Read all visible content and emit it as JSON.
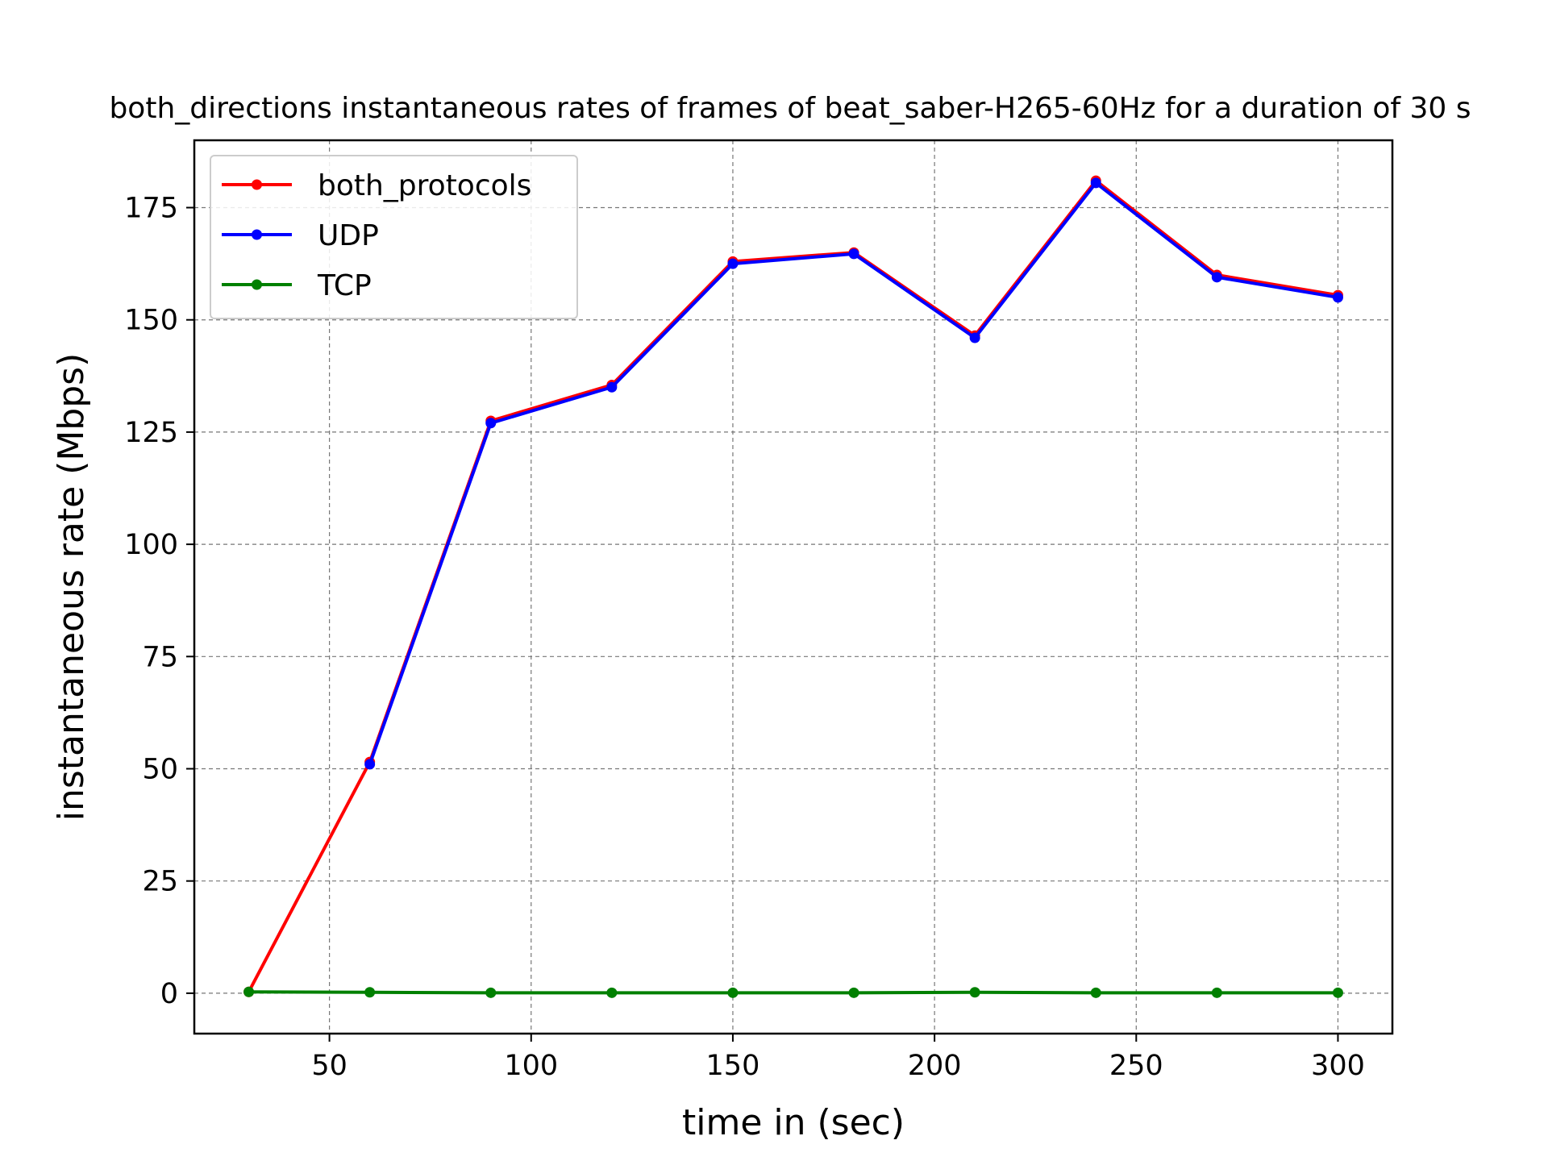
{
  "chart_data": {
    "type": "line",
    "title": "both_directions instantaneous rates of frames of beat_saber-H265-60Hz for a duration of 30 s",
    "xlabel": "time in (sec)",
    "ylabel": "instantaneous rate (Mbps)",
    "xlim": [
      16.5,
      313.5
    ],
    "ylim": [
      -9,
      190
    ],
    "x_ticks": [
      50,
      100,
      150,
      200,
      250,
      300
    ],
    "y_ticks": [
      0,
      25,
      50,
      75,
      100,
      125,
      150,
      175
    ],
    "grid": true,
    "legend_position": "top-left",
    "x": [
      30,
      60,
      90,
      120,
      150,
      180,
      210,
      240,
      270,
      300
    ],
    "series": [
      {
        "name": "both_protocols",
        "color": "#ff0000",
        "values": [
          0.3,
          51.5,
          127.5,
          135.5,
          163,
          165,
          146.5,
          181,
          160,
          155.5
        ]
      },
      {
        "name": "UDP",
        "color": "#0000ff",
        "values": [
          null,
          51,
          127,
          135,
          162.5,
          164.7,
          146,
          180.5,
          159.5,
          155
        ]
      },
      {
        "name": "TCP",
        "color": "#008000",
        "values": [
          0.3,
          0.2,
          0.1,
          0.1,
          0.1,
          0.1,
          0.2,
          0.1,
          0.1,
          0.1
        ]
      }
    ]
  }
}
